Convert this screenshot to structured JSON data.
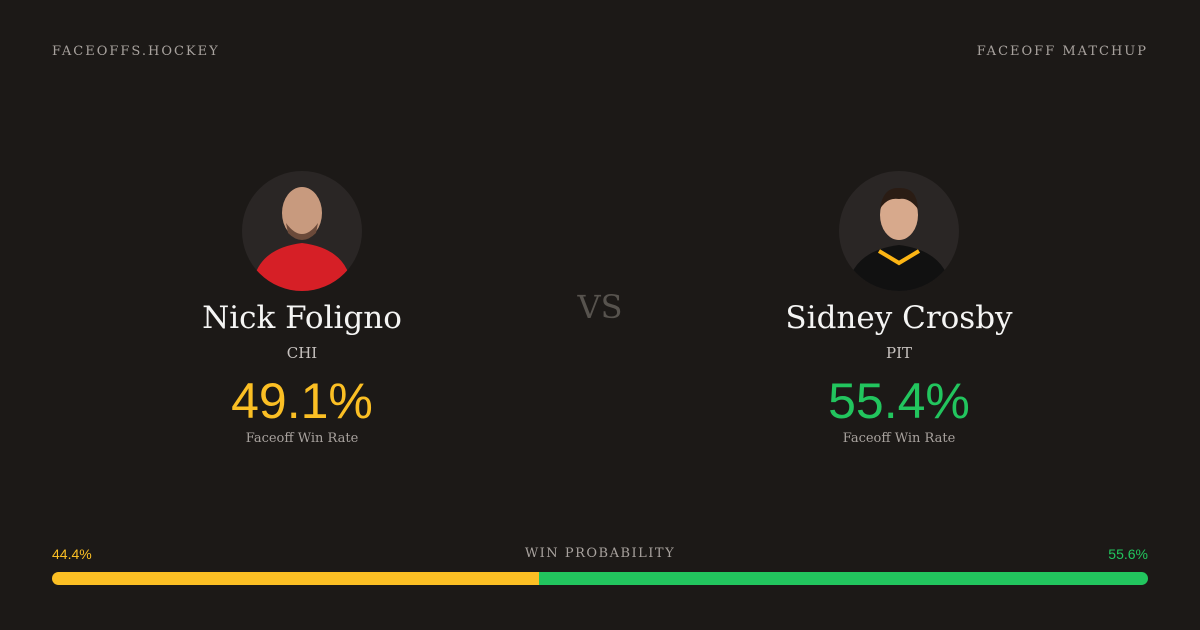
{
  "header": {
    "brand": "FACEOFFS.HOCKEY",
    "label": "FACEOFF MATCHUP"
  },
  "vs": "VS",
  "players": [
    {
      "name": "Nick Foligno",
      "team": "CHI",
      "rate": "49.1%",
      "rate_label": "Faceoff Win Rate"
    },
    {
      "name": "Sidney Crosby",
      "team": "PIT",
      "rate": "55.4%",
      "rate_label": "Faceoff Win Rate"
    }
  ],
  "win_probability": {
    "title": "WIN PROBABILITY",
    "left": {
      "value": 44.4,
      "label": "44.4%"
    },
    "right": {
      "value": 55.6,
      "label": "55.6%"
    }
  }
}
